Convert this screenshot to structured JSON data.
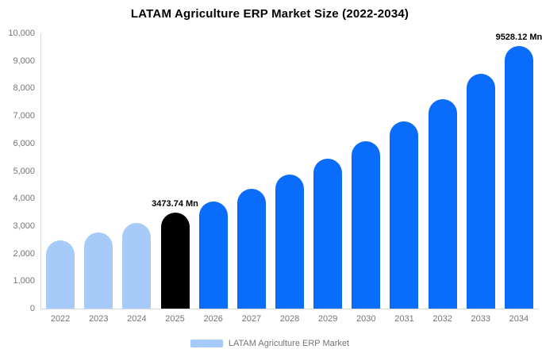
{
  "chart_data": {
    "type": "bar",
    "title": "LATAM Agriculture ERP Market Size (2022-2034)",
    "categories": [
      "2022",
      "2023",
      "2024",
      "2025",
      "2026",
      "2027",
      "2028",
      "2029",
      "2030",
      "2031",
      "2032",
      "2033",
      "2034"
    ],
    "values": [
      2482,
      2776,
      3105,
      3473.74,
      3886,
      4347,
      4863,
      5440,
      6085,
      6807,
      7615,
      8519,
      9528.12
    ],
    "ylim": [
      0,
      10000
    ],
    "y_ticks": [
      "0",
      "1,000",
      "2,000",
      "3,000",
      "4,000",
      "5,000",
      "6,000",
      "7,000",
      "8,000",
      "9,000",
      "10,000"
    ],
    "grid": false,
    "legend_position": "bottom",
    "legend": [
      "LATAM Agriculture ERP Market"
    ],
    "annotations": [
      {
        "category": "2025",
        "text": "3473.74 Mn"
      },
      {
        "category": "2034",
        "text": "9528.12 Mn"
      }
    ],
    "bar_colors": [
      "#A6CBF8",
      "#A6CBF8",
      "#A6CBF8",
      "#000000",
      "#0A6CFA",
      "#0A6CFA",
      "#0A6CFA",
      "#0A6CFA",
      "#0A6CFA",
      "#0A6CFA",
      "#0A6CFA",
      "#0A6CFA",
      "#0A6CFA"
    ],
    "colors": {
      "historical": "#A6CBF8",
      "base_year": "#000000",
      "forecast": "#0A6CFA",
      "axis": "#D9D9D9",
      "tick_text": "#757575",
      "label_text": "#000000"
    }
  }
}
